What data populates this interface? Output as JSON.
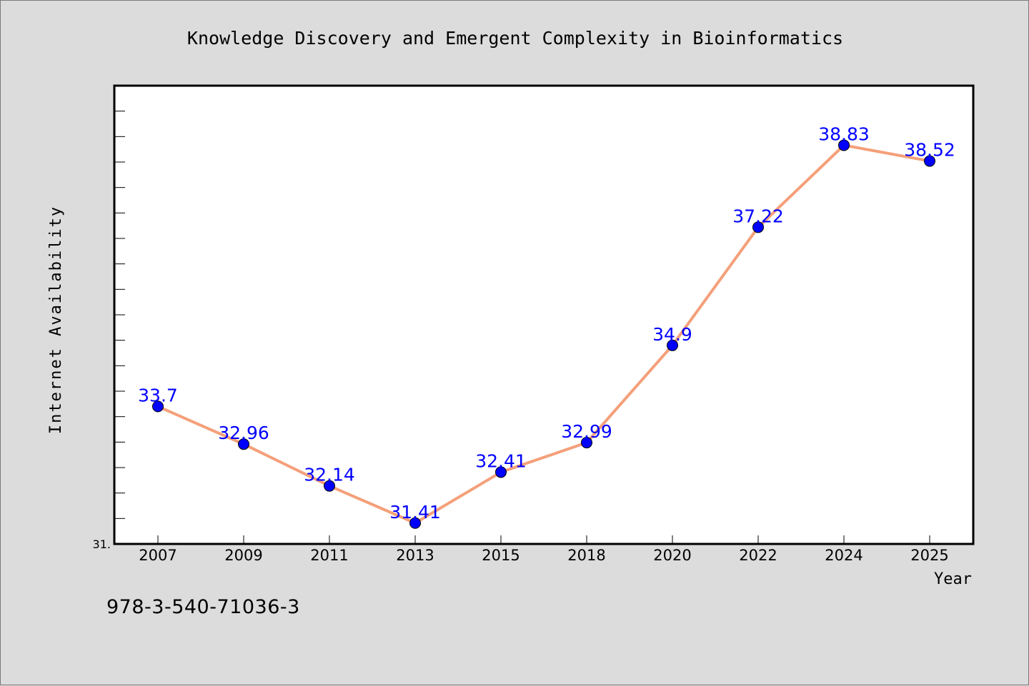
{
  "chart_data": {
    "type": "line",
    "title": "Knowledge Discovery and Emergent Complexity in Bioinformatics",
    "xlabel": "Year",
    "ylabel": "Internet Availability",
    "categories": [
      "2007",
      "2009",
      "2011",
      "2013",
      "2015",
      "2018",
      "2020",
      "2022",
      "2024",
      "2025"
    ],
    "series": [
      {
        "values": [
          33.7,
          32.96,
          32.14,
          31.41,
          32.41,
          32.99,
          34.9,
          37.22,
          38.83,
          38.52
        ],
        "labels": [
          "33.7",
          "32.96",
          "32.14",
          "31.41",
          "32.41",
          "32.99",
          "34.9",
          "37.22",
          "38.83",
          "38.52"
        ],
        "line_color": "#f4a07a",
        "marker_color": "#0000ff"
      }
    ],
    "ylim": [
      31.0,
      40.0
    ],
    "y_tick_label": "31.",
    "grid": false,
    "legend": "none",
    "background": "#dcdcdc",
    "plot_background": "#ffffff",
    "label_color": "#0000ff"
  },
  "footer": {
    "isbn": "978-3-540-71036-3"
  }
}
